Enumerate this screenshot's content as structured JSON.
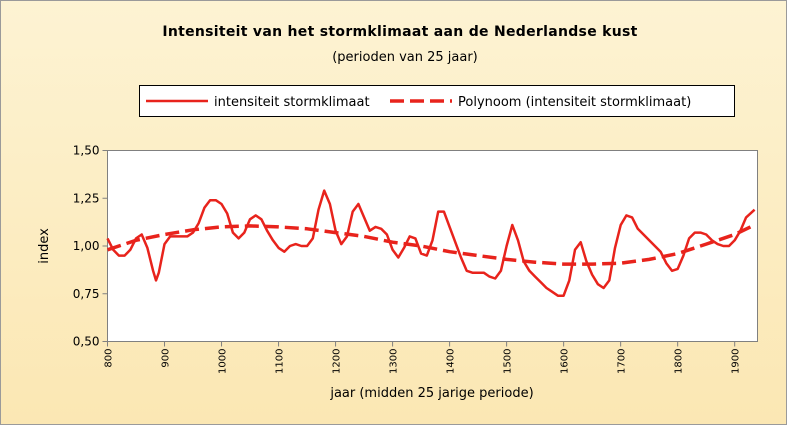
{
  "chart_data": {
    "type": "line",
    "title": "Intensiteit van het stormklimaat aan de Nederlandse kust",
    "subtitle": "(perioden van 25 jaar)",
    "x_label": "jaar (midden 25 jarige periode)",
    "y_label": "index",
    "xlim": [
      800,
      1940
    ],
    "ylim": [
      0.5,
      1.5
    ],
    "xticks": [
      800,
      900,
      1000,
      1100,
      1200,
      1300,
      1400,
      1500,
      1600,
      1700,
      1800,
      1900
    ],
    "yticks": [
      {
        "value": 0.5,
        "label": "0,50"
      },
      {
        "value": 0.75,
        "label": "0,75"
      },
      {
        "value": 1.0,
        "label": "1,00"
      },
      {
        "value": 1.25,
        "label": "1,25"
      },
      {
        "value": 1.5,
        "label": "1,50"
      }
    ],
    "grid": false,
    "legend": "top",
    "series": [
      {
        "name": "intensiteit stormklimaat",
        "color": "#e8231c",
        "dash": "solid",
        "x": [
          800,
          810,
          820,
          830,
          840,
          850,
          860,
          870,
          880,
          885,
          890,
          900,
          910,
          920,
          930,
          940,
          950,
          960,
          970,
          980,
          990,
          1000,
          1010,
          1020,
          1030,
          1040,
          1050,
          1060,
          1070,
          1080,
          1090,
          1100,
          1110,
          1120,
          1130,
          1140,
          1150,
          1160,
          1170,
          1180,
          1190,
          1200,
          1210,
          1220,
          1230,
          1240,
          1250,
          1260,
          1270,
          1280,
          1290,
          1300,
          1310,
          1320,
          1330,
          1340,
          1350,
          1360,
          1370,
          1380,
          1390,
          1400,
          1410,
          1420,
          1430,
          1440,
          1450,
          1460,
          1470,
          1480,
          1490,
          1500,
          1510,
          1520,
          1530,
          1540,
          1550,
          1560,
          1570,
          1580,
          1590,
          1600,
          1610,
          1620,
          1630,
          1640,
          1650,
          1660,
          1670,
          1680,
          1690,
          1700,
          1710,
          1720,
          1730,
          1740,
          1750,
          1760,
          1770,
          1780,
          1790,
          1800,
          1810,
          1820,
          1830,
          1840,
          1850,
          1860,
          1870,
          1880,
          1890,
          1900,
          1910,
          1920,
          1935
        ],
        "values": [
          1.04,
          0.98,
          0.95,
          0.95,
          0.98,
          1.04,
          1.06,
          0.99,
          0.87,
          0.82,
          0.86,
          1.01,
          1.05,
          1.05,
          1.05,
          1.05,
          1.07,
          1.12,
          1.2,
          1.24,
          1.24,
          1.22,
          1.17,
          1.07,
          1.04,
          1.07,
          1.14,
          1.16,
          1.14,
          1.08,
          1.03,
          0.99,
          0.97,
          1.0,
          1.01,
          1.0,
          1.0,
          1.04,
          1.19,
          1.29,
          1.22,
          1.08,
          1.01,
          1.05,
          1.18,
          1.22,
          1.15,
          1.08,
          1.1,
          1.09,
          1.06,
          0.98,
          0.94,
          0.99,
          1.05,
          1.04,
          0.96,
          0.95,
          1.03,
          1.18,
          1.18,
          1.1,
          1.02,
          0.94,
          0.87,
          0.86,
          0.86,
          0.86,
          0.84,
          0.83,
          0.87,
          1.0,
          1.11,
          1.03,
          0.92,
          0.87,
          0.84,
          0.81,
          0.78,
          0.76,
          0.74,
          0.74,
          0.82,
          0.98,
          1.02,
          0.92,
          0.85,
          0.8,
          0.78,
          0.82,
          0.99,
          1.11,
          1.16,
          1.15,
          1.09,
          1.06,
          1.03,
          1.0,
          0.97,
          0.91,
          0.87,
          0.88,
          0.95,
          1.04,
          1.07,
          1.07,
          1.06,
          1.03,
          1.01,
          1.0,
          1.0,
          1.03,
          1.08,
          1.15,
          1.19
        ]
      },
      {
        "name": "Polynoom (intensiteit stormklimaat)",
        "color": "#e8231c",
        "dash": "dashed",
        "x": [
          800,
          850,
          900,
          950,
          1000,
          1050,
          1100,
          1150,
          1200,
          1250,
          1300,
          1350,
          1400,
          1450,
          1500,
          1550,
          1600,
          1650,
          1700,
          1750,
          1800,
          1850,
          1900,
          1935
        ],
        "values": [
          0.98,
          1.03,
          1.06,
          1.085,
          1.1,
          1.105,
          1.1,
          1.09,
          1.07,
          1.05,
          1.02,
          1.0,
          0.97,
          0.95,
          0.93,
          0.915,
          0.905,
          0.905,
          0.91,
          0.93,
          0.96,
          1.01,
          1.06,
          1.11
        ]
      }
    ]
  }
}
